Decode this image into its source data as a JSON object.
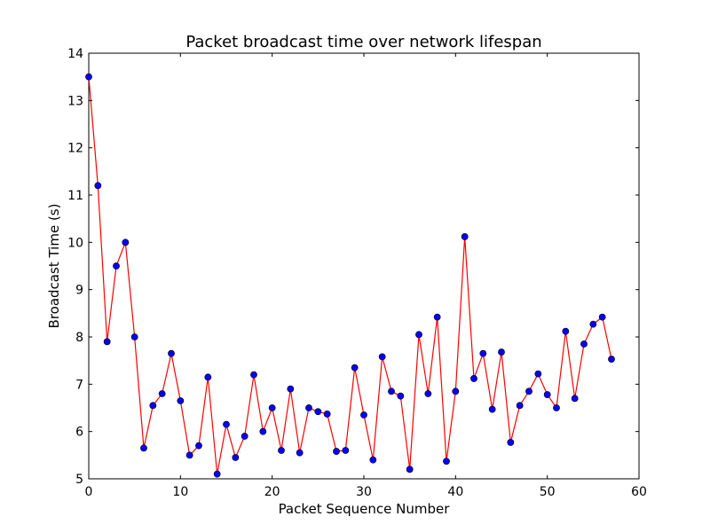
{
  "chart_data": {
    "type": "line",
    "title": "Packet broadcast time over network lifespan",
    "xlabel": "Packet Sequence Number",
    "ylabel": "Broadcast Time (s)",
    "xlim": [
      0,
      60
    ],
    "ylim": [
      5,
      14
    ],
    "xticks": [
      0,
      10,
      20,
      30,
      40,
      50,
      60
    ],
    "yticks": [
      5,
      6,
      7,
      8,
      9,
      10,
      11,
      12,
      13,
      14
    ],
    "grid": false,
    "legend": null,
    "line_color": "#ff0000",
    "marker_color": "#0000ff",
    "series": [
      {
        "x": [
          0,
          1,
          2,
          3,
          4,
          5,
          6,
          7,
          8,
          9,
          10,
          11,
          12,
          13,
          14,
          15,
          16,
          17,
          18,
          19,
          20,
          21,
          22,
          23,
          24,
          25,
          26,
          27,
          28,
          29,
          30,
          31,
          32,
          33,
          34,
          35,
          36,
          37,
          38,
          39,
          40,
          41,
          42,
          43,
          44,
          45,
          46,
          47,
          48,
          49,
          50,
          51,
          52,
          53,
          54,
          55,
          56,
          57
        ],
        "y": [
          13.5,
          11.2,
          7.9,
          9.5,
          10.0,
          8.0,
          5.65,
          6.55,
          6.8,
          7.65,
          6.65,
          5.5,
          5.7,
          7.15,
          5.1,
          6.15,
          5.45,
          5.9,
          7.2,
          6.0,
          6.5,
          5.6,
          6.9,
          5.55,
          6.5,
          6.42,
          6.37,
          5.58,
          5.6,
          7.35,
          6.35,
          5.4,
          7.58,
          6.85,
          6.75,
          5.2,
          8.05,
          6.8,
          8.42,
          5.37,
          6.85,
          10.12,
          7.12,
          7.65,
          6.47,
          7.68,
          5.77,
          6.55,
          6.85,
          7.22,
          6.78,
          6.5,
          8.12,
          6.7,
          7.85,
          8.27,
          8.42,
          7.53
        ]
      }
    ]
  }
}
